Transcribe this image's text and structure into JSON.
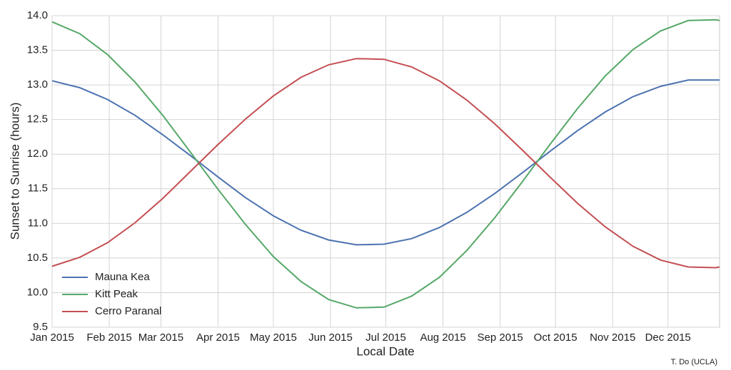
{
  "chart_data": {
    "type": "line",
    "xlabel": "Local Date",
    "ylabel": "Sunset to Sunrise (hours)",
    "credit": "T. Do (UCLA)",
    "x": [
      0,
      15,
      30,
      45,
      60,
      75,
      90,
      105,
      120,
      135,
      150,
      165,
      180,
      195,
      210,
      225,
      240,
      255,
      270,
      285,
      300,
      315,
      330,
      345,
      360,
      362
    ],
    "xlim": [
      0,
      362
    ],
    "xticks": [
      {
        "value": 0,
        "label": "Jan 2015"
      },
      {
        "value": 31,
        "label": "Feb 2015"
      },
      {
        "value": 59,
        "label": "Mar 2015"
      },
      {
        "value": 90,
        "label": "Apr 2015"
      },
      {
        "value": 120,
        "label": "May 2015"
      },
      {
        "value": 151,
        "label": "Jun 2015"
      },
      {
        "value": 181,
        "label": "Jul 2015"
      },
      {
        "value": 212,
        "label": "Aug 2015"
      },
      {
        "value": 243,
        "label": "Sep 2015"
      },
      {
        "value": 273,
        "label": "Oct 2015"
      },
      {
        "value": 304,
        "label": "Nov 2015"
      },
      {
        "value": 334,
        "label": "Dec 2015"
      }
    ],
    "ylim": [
      9.5,
      14
    ],
    "yticks": [
      9.5,
      {
        "value": 10,
        "label": "10.0"
      },
      10.5,
      {
        "value": 11,
        "label": "11.0"
      },
      11.5,
      {
        "value": 12,
        "label": "12.0"
      },
      12.5,
      {
        "value": 13,
        "label": "13.0"
      },
      13.5,
      {
        "value": 14,
        "label": "14.0"
      }
    ],
    "grid": true,
    "legend": "lower left",
    "series": [
      {
        "name": "Mauna Kea",
        "color": "#4c72b0",
        "values": [
          13.06,
          12.96,
          12.79,
          12.56,
          12.28,
          11.98,
          11.67,
          11.37,
          11.11,
          10.9,
          10.76,
          10.69,
          10.7,
          10.78,
          10.94,
          11.16,
          11.43,
          11.73,
          12.04,
          12.34,
          12.61,
          12.83,
          12.98,
          13.07,
          13.07,
          13.07
        ]
      },
      {
        "name": "Kitt Peak",
        "color": "#55a868",
        "values": [
          13.91,
          13.74,
          13.44,
          13.04,
          12.56,
          12.03,
          11.49,
          10.98,
          10.52,
          10.16,
          9.9,
          9.78,
          9.79,
          9.95,
          10.22,
          10.61,
          11.08,
          11.6,
          12.14,
          12.66,
          13.13,
          13.51,
          13.78,
          13.93,
          13.94,
          13.93
        ]
      },
      {
        "name": "Cerro Paranal",
        "color": "#c44e52",
        "values": [
          10.38,
          10.51,
          10.72,
          11.01,
          11.36,
          11.75,
          12.14,
          12.51,
          12.84,
          13.11,
          13.29,
          13.38,
          13.37,
          13.26,
          13.06,
          12.78,
          12.44,
          12.06,
          11.67,
          11.29,
          10.95,
          10.67,
          10.47,
          10.37,
          10.36,
          10.37
        ]
      }
    ]
  }
}
